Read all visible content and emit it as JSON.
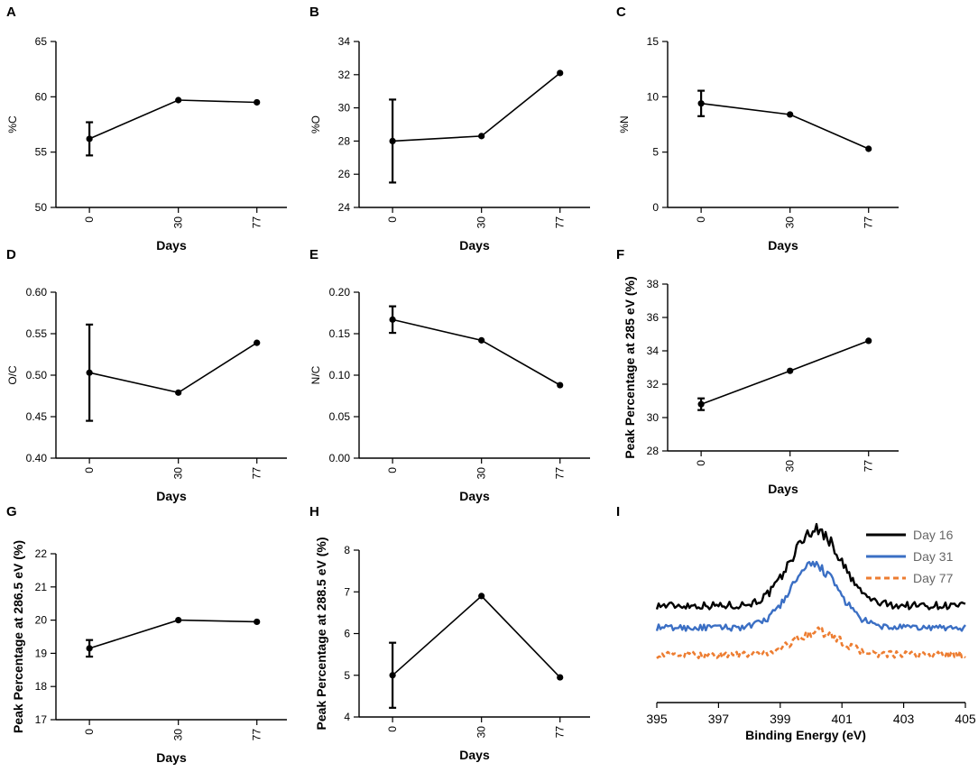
{
  "chart_data": [
    {
      "panel": "A",
      "type": "line",
      "title": "",
      "xlabel": "Days",
      "ylabel": "%C",
      "categories": [
        "0",
        "30",
        "77"
      ],
      "values": [
        56.2,
        59.7,
        59.5
      ],
      "error": [
        1.5,
        0,
        0
      ],
      "ylim": [
        50,
        65
      ],
      "yticks": [
        "50",
        "55",
        "60",
        "65"
      ]
    },
    {
      "panel": "B",
      "type": "line",
      "title": "",
      "xlabel": "Days",
      "ylabel": "%O",
      "categories": [
        "0",
        "30",
        "77"
      ],
      "values": [
        28.0,
        28.3,
        32.1
      ],
      "error": [
        2.5,
        0,
        0
      ],
      "ylim": [
        24,
        34
      ],
      "yticks": [
        "24",
        "26",
        "28",
        "30",
        "32",
        "34"
      ]
    },
    {
      "panel": "C",
      "type": "line",
      "title": "",
      "xlabel": "Days",
      "ylabel": "%N",
      "categories": [
        "0",
        "30",
        "77"
      ],
      "values": [
        9.4,
        8.4,
        5.3
      ],
      "error": [
        1.15,
        0,
        0
      ],
      "ylim": [
        0,
        15
      ],
      "yticks": [
        "0",
        "5",
        "10",
        "15"
      ]
    },
    {
      "panel": "D",
      "type": "line",
      "title": "",
      "xlabel": "Days",
      "ylabel": "O/C",
      "categories": [
        "0",
        "30",
        "77"
      ],
      "values": [
        0.503,
        0.479,
        0.539
      ],
      "error": [
        0.058,
        0,
        0
      ],
      "ylim": [
        0.4,
        0.6
      ],
      "yticks": [
        "0.40",
        "0.45",
        "0.50",
        "0.55",
        "0.60"
      ]
    },
    {
      "panel": "E",
      "type": "line",
      "title": "",
      "xlabel": "Days",
      "ylabel": "N/C",
      "categories": [
        "0",
        "30",
        "77"
      ],
      "values": [
        0.167,
        0.142,
        0.088
      ],
      "error": [
        0.016,
        0,
        0
      ],
      "ylim": [
        0,
        0.2
      ],
      "yticks": [
        "0.00",
        "0.05",
        "0.10",
        "0.15",
        "0.20"
      ]
    },
    {
      "panel": "F",
      "type": "line",
      "title": "",
      "xlabel": "Days",
      "ylabel": "Peak Percentage at 285 eV (%)",
      "categories": [
        "0",
        "30",
        "77"
      ],
      "values": [
        30.8,
        32.8,
        34.6
      ],
      "error": [
        0.35,
        0,
        0
      ],
      "ylim": [
        28,
        38
      ],
      "yticks": [
        "28",
        "30",
        "32",
        "34",
        "36",
        "38"
      ]
    },
    {
      "panel": "G",
      "type": "line",
      "title": "",
      "xlabel": "Days",
      "ylabel": "Peak Percentage at 286.5 eV (%)",
      "categories": [
        "0",
        "30",
        "77"
      ],
      "values": [
        19.15,
        20.0,
        19.95
      ],
      "error": [
        0.25,
        0,
        0
      ],
      "ylim": [
        17,
        22
      ],
      "yticks": [
        "17",
        "18",
        "19",
        "20",
        "21",
        "22"
      ]
    },
    {
      "panel": "H",
      "type": "line",
      "title": "",
      "xlabel": "Days",
      "ylabel": "Peak Percentage at 288.5 eV (%)",
      "categories": [
        "0",
        "30",
        "77"
      ],
      "values": [
        5.0,
        6.9,
        4.95
      ],
      "error": [
        0.78,
        0,
        0
      ],
      "ylim": [
        4,
        8
      ],
      "yticks": [
        "4",
        "5",
        "6",
        "7",
        "8"
      ]
    },
    {
      "panel": "I",
      "type": "line",
      "title": "",
      "xlabel": "Binding Energy (eV)",
      "ylabel": "",
      "xlim": [
        395,
        405
      ],
      "xticks": [
        "395",
        "397",
        "399",
        "401",
        "403",
        "405"
      ],
      "series": [
        {
          "name": "Day 16",
          "color": "#000000",
          "dash": "solid",
          "baseline": 0.62,
          "peak_height": 2.8,
          "center": 400.15,
          "width": 0.8,
          "noise": 0.14
        },
        {
          "name": "Day 31",
          "color": "#3b6fc4",
          "dash": "solid",
          "baseline": -0.2,
          "peak_height": 2.3,
          "center": 400.1,
          "width": 0.78,
          "noise": 0.12
        },
        {
          "name": "Day 77",
          "color": "#ed7d31",
          "dash": "dashed",
          "baseline": -1.2,
          "peak_height": 0.85,
          "center": 400.2,
          "width": 0.75,
          "noise": 0.13
        }
      ]
    }
  ]
}
